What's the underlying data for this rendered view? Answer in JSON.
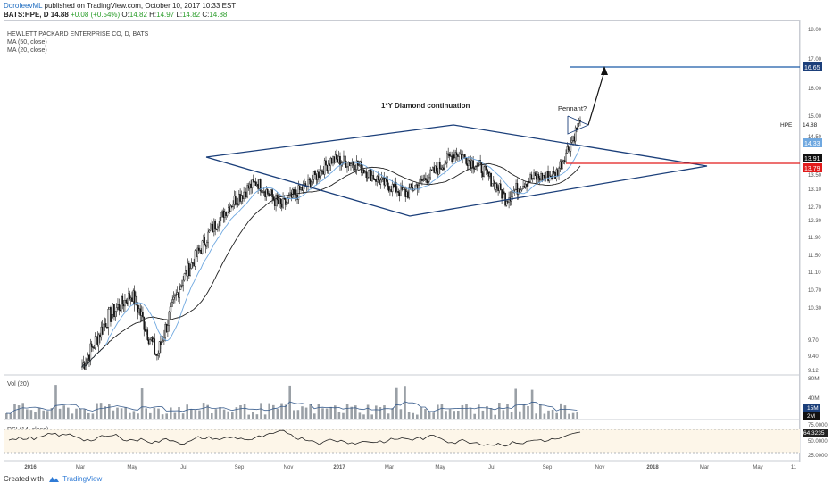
{
  "header": {
    "author": "DorofeevML",
    "published_text": "published on TradingView.com, October 10, 2017 10:33 EST",
    "symbol": "BATS:HPE, D",
    "last": "14.88",
    "change": "+0.08 (+0.54%)",
    "o_label": "O:",
    "o_value": "14.82",
    "h_label": "H:",
    "h_value": "14.97",
    "l_label": "L:",
    "l_value": "14.82",
    "c_label": "C:",
    "c_value": "14.88"
  },
  "legend": {
    "title": "HEWLETT PACKARD ENTERPRISE CO, D, BATS",
    "ma50": "MA (50, close)",
    "ma20": "MA (20, close)",
    "vol": "Vol (20)",
    "rsi": "RSI (14, close)"
  },
  "annotations": {
    "diamond": "1*Y Diamond continuation",
    "pennant": "Pennant?"
  },
  "price_axis": {
    "ticks": [
      "18.00",
      "17.00",
      "16.00",
      "15.00",
      "14.50",
      "13.50",
      "13.10",
      "12.70",
      "12.30",
      "11.90",
      "11.50",
      "11.10",
      "10.70",
      "10.30",
      "9.70",
      "9.40",
      "9.12"
    ],
    "labels": {
      "target": "16.65",
      "hpe_label": "HPE",
      "hpe_value": "14.88",
      "ma20": "14.33",
      "resistance": "13.91",
      "ma50": "13.79"
    }
  },
  "vol_axis": {
    "ticks": [
      "80M",
      "40M"
    ],
    "labels": [
      "15M",
      "2M"
    ]
  },
  "rsi_axis": {
    "ticks": [
      "75.0000",
      "50.0000",
      "25.0000"
    ],
    "label": "64.3235"
  },
  "x_axis": {
    "ticks": [
      "2016",
      "Mar",
      "May",
      "Jul",
      "Sep",
      "Nov",
      "2017",
      "Mar",
      "May",
      "Jul",
      "Sep",
      "Nov",
      "2018",
      "Mar",
      "May",
      "11"
    ]
  },
  "footer": {
    "created": "Created with",
    "brand": "TradingView"
  },
  "colors": {
    "pattern": "#1b3f7a",
    "target_line": "#1b5aa8",
    "resistance": "#e21b1b",
    "ma20": "#6fa8e0",
    "ma50": "#222222",
    "price": "#111111",
    "vol": "#9aa0a6",
    "rsi_band": "#fdf6e9"
  },
  "chart_data": {
    "type": "line",
    "title": "HEWLETT PACKARD ENTERPRISE CO, D, BATS",
    "series": [
      {
        "name": "HPE",
        "x": [
          "2016-02",
          "2016-03",
          "2016-04",
          "2016-05",
          "2016-06",
          "2016-07",
          "2016-08",
          "2016-09",
          "2016-10",
          "2016-11",
          "2016-12",
          "2017-01",
          "2017-02",
          "2017-03",
          "2017-04",
          "2017-05",
          "2017-06",
          "2017-07",
          "2017-08",
          "2017-09",
          "2017-10"
        ],
        "y": [
          9.2,
          10.1,
          10.6,
          9.4,
          10.9,
          11.9,
          12.8,
          13.3,
          12.7,
          13.2,
          13.9,
          13.8,
          13.3,
          13.0,
          13.5,
          14.1,
          13.7,
          12.9,
          13.4,
          13.5,
          14.88
        ]
      },
      {
        "name": "MA (20, close)",
        "last": 14.33
      },
      {
        "name": "MA (50, close)",
        "last": 13.79
      }
    ],
    "levels": {
      "target": 16.65,
      "resistance": 13.91
    },
    "ylim": [
      9.12,
      18.0
    ],
    "rsi_last": 64.3235
  }
}
